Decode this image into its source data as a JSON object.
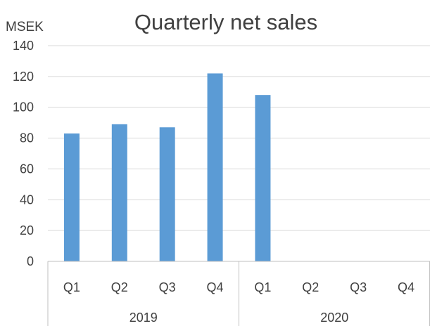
{
  "chart_data": {
    "type": "bar",
    "title": "Quarterly net sales",
    "ylabel": "MSEK",
    "xlabel": "",
    "ylim": [
      0,
      140
    ],
    "y_ticks": [
      0,
      20,
      40,
      60,
      80,
      100,
      120,
      140
    ],
    "grid": true,
    "categories": [
      "Q1",
      "Q2",
      "Q3",
      "Q4",
      "Q1",
      "Q2",
      "Q3",
      "Q4"
    ],
    "groups": [
      {
        "label": "2019",
        "size": 4
      },
      {
        "label": "2020",
        "size": 4
      }
    ],
    "values": [
      83,
      89,
      87,
      122,
      108,
      null,
      null,
      null
    ],
    "bar_color": "#5b9bd5"
  }
}
